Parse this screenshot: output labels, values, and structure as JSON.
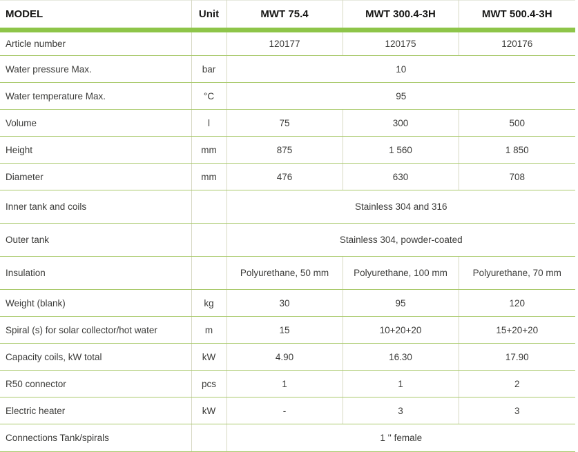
{
  "header": {
    "model_label": "MODEL",
    "unit_label": "Unit",
    "columns": [
      "MWT 75.4",
      "MWT 300.4-3H",
      "MWT 500.4-3H"
    ]
  },
  "rows": [
    {
      "label": "Article number",
      "unit": "",
      "values": [
        "120177",
        "120175",
        "120176"
      ],
      "span": false
    },
    {
      "label": "Water pressure Max.",
      "unit": "bar",
      "values": [
        "10"
      ],
      "span": true
    },
    {
      "label": "Water temperature Max.",
      "unit": "°C",
      "values": [
        "95"
      ],
      "span": true
    },
    {
      "label": "Volume",
      "unit": "l",
      "values": [
        "75",
        "300",
        "500"
      ],
      "span": false
    },
    {
      "label": "Height",
      "unit": "mm",
      "values": [
        "875",
        "1 560",
        "1 850"
      ],
      "span": false
    },
    {
      "label": "Diameter",
      "unit": "mm",
      "values": [
        "476",
        "630",
        "708"
      ],
      "span": false
    },
    {
      "label": "Inner tank and coils",
      "unit": "",
      "values": [
        "Stainless 304 and 316"
      ],
      "span": true
    },
    {
      "label": "Outer tank",
      "unit": "",
      "values": [
        "Stainless 304, powder-coated"
      ],
      "span": true
    },
    {
      "label": "Insulation",
      "unit": "",
      "values": [
        "Polyurethane, 50 mm",
        "Polyurethane, 100 mm",
        "Polyurethane, 70 mm"
      ],
      "span": false
    },
    {
      "label": "Weight (blank)",
      "unit": "kg",
      "values": [
        "30",
        "95",
        "120"
      ],
      "span": false
    },
    {
      "label": "Spiral (s) for solar collector/hot water",
      "unit": "m",
      "values": [
        "15",
        "10+20+20",
        "15+20+20"
      ],
      "span": false
    },
    {
      "label": "Capacity coils, kW total",
      "unit": "kW",
      "values": [
        "4.90",
        "16.30",
        "17.90"
      ],
      "span": false
    },
    {
      "label": "R50 connector",
      "unit": "pcs",
      "values": [
        "1",
        "1",
        "2"
      ],
      "span": false
    },
    {
      "label": "Electric heater",
      "unit": "kW",
      "values": [
        "-",
        "3",
        "3"
      ],
      "span": false
    },
    {
      "label": "Connections Tank/spirals",
      "unit": "",
      "values": [
        "1 '' female"
      ],
      "span": true
    }
  ],
  "colors": {
    "accent_green": "#8ec549",
    "row_line_green": "#a9c96b",
    "column_line": "#d6d8c2",
    "header_text": "#161615",
    "body_text": "#3b3b39"
  }
}
